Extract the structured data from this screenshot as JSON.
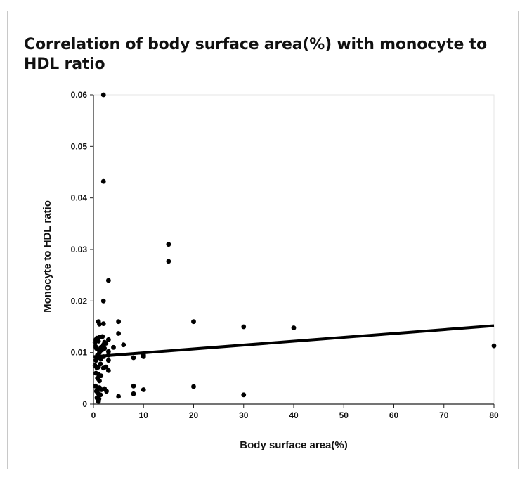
{
  "chart_data": {
    "type": "scatter",
    "title": "Correlation of body surface area(%) with monocyte to HDL ratio",
    "xlabel": "Body surface area(%)",
    "ylabel": "Monocyte to HDL ratio",
    "xlim": [
      0,
      80
    ],
    "ylim": [
      0,
      0.06
    ],
    "xticks": [
      "0",
      "10",
      "20",
      "30",
      "40",
      "50",
      "60",
      "70",
      "80"
    ],
    "yticks": [
      "0",
      "0.01",
      "0.02",
      "0.03",
      "0.04",
      "0.05",
      "0.06"
    ],
    "grid": false,
    "legend": "none",
    "marker_color": "#000000",
    "series": [
      {
        "x": [
          2,
          2,
          15,
          15,
          3,
          2,
          1,
          1.2,
          2,
          5,
          20,
          30,
          40,
          5,
          6,
          4,
          80,
          0.3,
          0.5,
          0.7,
          1,
          1.3,
          1.8,
          2.2,
          0.4,
          0.6,
          1.1,
          1.5,
          2,
          2.5,
          3,
          0.8,
          1.2,
          1.7,
          2.2,
          3,
          3,
          8,
          10,
          10,
          0.5,
          1,
          1.5,
          2,
          3,
          0.3,
          0.7,
          1,
          1.4,
          2,
          2.5,
          3,
          0.5,
          1,
          1.5,
          0.8,
          1.2,
          0.4,
          0.9,
          1.2,
          1.6,
          2.2,
          2.6,
          5,
          8,
          8,
          10,
          20,
          30,
          0.6,
          1,
          1.4,
          0.7,
          1.1,
          0.9,
          1.0
        ],
        "y": [
          0.06,
          0.0432,
          0.031,
          0.0277,
          0.024,
          0.02,
          0.016,
          0.0155,
          0.0156,
          0.016,
          0.016,
          0.015,
          0.0148,
          0.0137,
          0.0115,
          0.011,
          0.0113,
          0.012,
          0.0125,
          0.0128,
          0.0122,
          0.013,
          0.0131,
          0.012,
          0.0112,
          0.0108,
          0.0105,
          0.011,
          0.0115,
          0.0118,
          0.0125,
          0.0095,
          0.01,
          0.0105,
          0.0108,
          0.0102,
          0.0095,
          0.009,
          0.0092,
          0.0095,
          0.0085,
          0.009,
          0.0088,
          0.0092,
          0.0085,
          0.0075,
          0.007,
          0.0072,
          0.0078,
          0.007,
          0.0072,
          0.0065,
          0.006,
          0.0058,
          0.0055,
          0.005,
          0.0045,
          0.0035,
          0.003,
          0.0032,
          0.0028,
          0.003,
          0.0025,
          0.0015,
          0.0035,
          0.002,
          0.0028,
          0.0034,
          0.0018,
          0.0025,
          0.002,
          0.0018,
          0.0012,
          0.001,
          0.0008,
          0.0005
        ]
      }
    ],
    "trendline": {
      "type": "linear",
      "x": [
        0,
        80
      ],
      "y": [
        0.0092,
        0.0152
      ]
    }
  }
}
